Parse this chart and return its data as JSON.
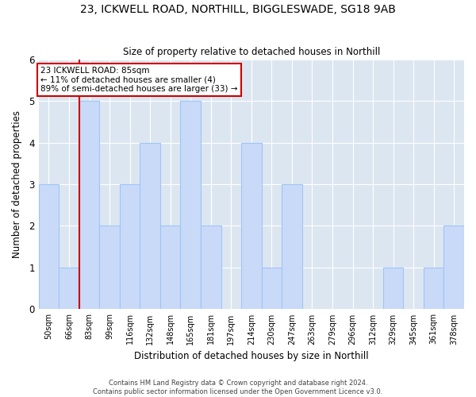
{
  "title": "23, ICKWELL ROAD, NORTHILL, BIGGLESWADE, SG18 9AB",
  "subtitle": "Size of property relative to detached houses in Northill",
  "xlabel": "Distribution of detached houses by size in Northill",
  "ylabel": "Number of detached properties",
  "bin_labels": [
    "50sqm",
    "66sqm",
    "83sqm",
    "99sqm",
    "116sqm",
    "132sqm",
    "148sqm",
    "165sqm",
    "181sqm",
    "197sqm",
    "214sqm",
    "230sqm",
    "247sqm",
    "263sqm",
    "279sqm",
    "296sqm",
    "312sqm",
    "329sqm",
    "345sqm",
    "361sqm",
    "378sqm"
  ],
  "bar_heights": [
    3,
    1,
    5,
    2,
    3,
    4,
    2,
    5,
    2,
    0,
    4,
    1,
    3,
    0,
    0,
    0,
    0,
    1,
    0,
    1,
    2
  ],
  "bar_color": "#c9daf8",
  "bar_edge_color": "#9fc5f8",
  "marker_index": 2,
  "marker_color": "#cc0000",
  "annotation_line1": "23 ICKWELL ROAD: 85sqm",
  "annotation_line2": "← 11% of detached houses are smaller (4)",
  "annotation_line3": "89% of semi-detached houses are larger (33) →",
  "annotation_box_color": "#ffffff",
  "annotation_box_edge_color": "#cc0000",
  "ylim": [
    0,
    6
  ],
  "yticks": [
    0,
    1,
    2,
    3,
    4,
    5,
    6
  ],
  "grid_color": "#ffffff",
  "bg_color": "#dce6f1",
  "fig_bg_color": "#ffffff",
  "footer_line1": "Contains HM Land Registry data © Crown copyright and database right 2024.",
  "footer_line2": "Contains public sector information licensed under the Open Government Licence v3.0."
}
